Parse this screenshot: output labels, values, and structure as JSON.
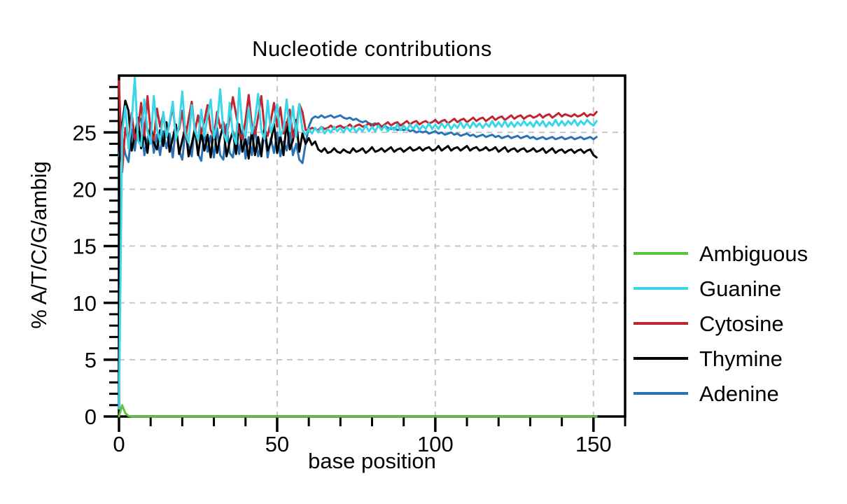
{
  "chart_data": {
    "type": "line",
    "title": "Nucleotide contributions",
    "xlabel": "base position",
    "ylabel": "% A/T/C/G/ambig",
    "xlim": [
      0,
      160
    ],
    "ylim": [
      0,
      30
    ],
    "x_ticks_major": [
      0,
      50,
      100,
      150
    ],
    "x_tick_minor_step": 10,
    "y_ticks_major": [
      0,
      5,
      10,
      15,
      20,
      25
    ],
    "y_tick_minor_step": 1,
    "grid": {
      "x_lines": [
        50,
        100,
        150
      ],
      "y_lines": [
        5,
        10,
        15,
        20,
        25
      ],
      "style": "dashed",
      "color": "#c7c7c7"
    },
    "legend_position": "right-outside",
    "x_start": 0,
    "x_step": 1,
    "series": [
      {
        "name": "Ambiguous",
        "color": "#5cc43c",
        "values": [
          0,
          1,
          0.3,
          0.05,
          0,
          0,
          0,
          0,
          0,
          0,
          0,
          0,
          0,
          0,
          0,
          0,
          0,
          0,
          0,
          0,
          0,
          0,
          0,
          0,
          0,
          0,
          0,
          0,
          0,
          0,
          0,
          0,
          0,
          0,
          0,
          0,
          0,
          0,
          0,
          0,
          0,
          0,
          0,
          0,
          0,
          0,
          0,
          0,
          0,
          0,
          0,
          0,
          0,
          0,
          0,
          0,
          0,
          0,
          0,
          0,
          0,
          0,
          0,
          0,
          0,
          0,
          0,
          0,
          0,
          0,
          0,
          0,
          0,
          0,
          0,
          0,
          0,
          0,
          0,
          0,
          0,
          0,
          0,
          0,
          0,
          0,
          0,
          0,
          0,
          0,
          0,
          0,
          0,
          0,
          0,
          0,
          0,
          0,
          0,
          0,
          0,
          0,
          0,
          0,
          0,
          0,
          0,
          0,
          0,
          0,
          0,
          0,
          0,
          0,
          0,
          0,
          0,
          0,
          0,
          0,
          0,
          0,
          0,
          0,
          0,
          0,
          0,
          0,
          0,
          0,
          0,
          0,
          0,
          0,
          0,
          0,
          0,
          0,
          0,
          0,
          0,
          0,
          0,
          0,
          0,
          0,
          0,
          0,
          0,
          0,
          0,
          0
        ]
      },
      {
        "name": "Guanine",
        "color": "#38d6e8",
        "values": [
          0.7,
          25,
          27.3,
          23.6,
          26,
          29.8,
          24.3,
          23.8,
          27.9,
          25.1,
          24,
          28.2,
          25.3,
          24.2,
          26.8,
          24.6,
          25.9,
          27.7,
          24.4,
          25.6,
          28.6,
          24.9,
          24.1,
          27.4,
          25.2,
          24.3,
          27,
          24.7,
          26.4,
          27.9,
          24.5,
          25.8,
          28.8,
          25,
          24.2,
          27.6,
          24.8,
          24,
          28.9,
          25.4,
          24.6,
          27.2,
          24.9,
          26.1,
          28.4,
          25.2,
          24.4,
          27.8,
          25,
          25.9,
          27.5,
          24.7,
          25.3,
          27.9,
          25.1,
          27.3,
          24.6,
          27.5,
          25.2,
          24.8,
          25.3,
          24.9,
          25.4,
          25,
          25.5,
          24.9,
          25.3,
          25,
          25.5,
          25.1,
          25.4,
          25,
          25.5,
          25.1,
          25.5,
          25,
          25.4,
          25.1,
          25.6,
          25.1,
          25.5,
          25.1,
          25.6,
          25.2,
          25.6,
          25.1,
          25.5,
          25.2,
          25.7,
          25.2,
          25.6,
          25.2,
          25.7,
          25.3,
          25.7,
          25.2,
          25.6,
          25.3,
          25.8,
          25.3,
          25.7,
          25.3,
          25.8,
          25.4,
          25.8,
          25.3,
          25.7,
          25.4,
          25.9,
          25.4,
          25.8,
          25.4,
          25.9,
          25.5,
          25.8,
          25.4,
          25.8,
          25.5,
          26,
          25.5,
          25.9,
          25.5,
          26,
          25.5,
          25.9,
          25.5,
          25.9,
          25.6,
          26,
          25.6,
          25.9,
          25.5,
          26,
          25.6,
          26,
          25.5,
          25.9,
          25.6,
          26.1,
          25.6,
          26,
          25.6,
          26,
          25.7,
          26.1,
          25.6,
          26,
          25.7,
          26.1,
          25.8,
          25.6,
          26
        ]
      },
      {
        "name": "Cytosine",
        "color": "#bf2430",
        "values": [
          29.5,
          21.5,
          25.4,
          24.1,
          26.7,
          24.4,
          25.2,
          27.6,
          24.7,
          28.2,
          25,
          24.3,
          27.1,
          25.5,
          26.6,
          24.6,
          25.8,
          27.3,
          24.8,
          25.3,
          26.9,
          24.5,
          26.2,
          27.7,
          25.1,
          26.5,
          24.9,
          26,
          27.4,
          25.2,
          24.6,
          26.8,
          25.4,
          25.9,
          24.7,
          26.3,
          28.1,
          26.6,
          25,
          24.4,
          26.1,
          28.3,
          25.6,
          24.8,
          26.4,
          28.2,
          25.3,
          24.7,
          26,
          27.6,
          25.5,
          27.2,
          24.9,
          25.7,
          27,
          24.6,
          25.4,
          27.5,
          26.8,
          25.2,
          25.2,
          25.4,
          25.3,
          25.2,
          25.5,
          25.3,
          25.4,
          25.6,
          25.3,
          25.5,
          25.6,
          25.4,
          25.5,
          25.7,
          25.4,
          25.6,
          25.7,
          25.5,
          25.6,
          25.8,
          25.5,
          25.7,
          25.8,
          25.5,
          25.7,
          25.9,
          25.6,
          25.8,
          25.9,
          25.6,
          25.8,
          26,
          25.7,
          25.9,
          26,
          25.7,
          25.9,
          26,
          25.8,
          25.9,
          26.1,
          25.8,
          26,
          26.1,
          25.8,
          26,
          26.2,
          25.9,
          26.1,
          26.2,
          25.9,
          26.1,
          26.3,
          26,
          26.2,
          26.3,
          26,
          26.2,
          26.4,
          26.1,
          26.3,
          26.4,
          26.1,
          26.3,
          26.5,
          26.2,
          26.4,
          26.5,
          26.2,
          26.4,
          26.5,
          26.3,
          26.4,
          26.6,
          26.3,
          26.5,
          26.6,
          26.3,
          26.5,
          26.7,
          26.4,
          26.6,
          26.5,
          26.4,
          26.6,
          26.4,
          26.5,
          26.7,
          26.4,
          26.6,
          26.5,
          26.8
        ]
      },
      {
        "name": "Thymine",
        "color": "#000000",
        "values": [
          21.9,
          25.6,
          27.8,
          26.9,
          23.4,
          24.7,
          26.3,
          23.6,
          24.9,
          23.2,
          25.8,
          24.1,
          23.5,
          25.2,
          23.8,
          25.9,
          23.3,
          24.5,
          25.7,
          23.1,
          24.3,
          25.5,
          22.9,
          24,
          25.3,
          23,
          25,
          23.4,
          24.8,
          22.8,
          25.4,
          23.2,
          24.6,
          25.6,
          22.9,
          24.2,
          25.1,
          23.1,
          25.7,
          23.3,
          24.4,
          22.7,
          25.2,
          23,
          24.6,
          22.9,
          25.5,
          23.4,
          24.1,
          25.8,
          23.2,
          24.7,
          23,
          25.9,
          23.5,
          24.3,
          26.1,
          23.3,
          24.9,
          24,
          24.5,
          23.9,
          24.2,
          23.5,
          23.3,
          23.6,
          23.2,
          23.3,
          23.6,
          23.3,
          23.2,
          23.5,
          23.3,
          23.2,
          23.6,
          23.3,
          23.4,
          23.6,
          23.2,
          23.4,
          23.7,
          23.3,
          23.4,
          23.6,
          23.3,
          23.5,
          23.7,
          23.3,
          23.5,
          23.6,
          23.3,
          23.5,
          23.7,
          23.4,
          23.5,
          23.7,
          23.4,
          23.6,
          23.7,
          23.4,
          23.5,
          23.8,
          23.4,
          23.6,
          23.8,
          23.4,
          23.6,
          23.7,
          23.4,
          23.6,
          23.8,
          23.4,
          23.6,
          23.7,
          23.4,
          23.5,
          23.7,
          23.4,
          23.5,
          23.7,
          23.3,
          23.5,
          23.7,
          23.3,
          23.5,
          23.6,
          23.3,
          23.5,
          23.6,
          23.3,
          23.4,
          23.6,
          23.3,
          23.4,
          23.6,
          23.2,
          23.4,
          23.6,
          23.2,
          23.4,
          23.5,
          23.2,
          23.4,
          23.5,
          23.2,
          23.4,
          23.5,
          23.2,
          23.4,
          23.5,
          23,
          22.8
        ]
      },
      {
        "name": "Adenine",
        "color": "#2b73b4",
        "values": [
          22.9,
          24.5,
          23.1,
          22.4,
          25.3,
          23.4,
          25.9,
          26.2,
          23,
          24.4,
          25.6,
          23.2,
          24.8,
          23,
          25.1,
          23.6,
          24.9,
          22.8,
          25.5,
          23.4,
          22.6,
          25.2,
          23.8,
          22.9,
          25.6,
          23.1,
          22.5,
          25,
          23.3,
          24.7,
          22.8,
          25.4,
          23,
          22.6,
          25.7,
          23.2,
          22.8,
          24.9,
          23.1,
          25.3,
          22.7,
          24.6,
          23,
          25.5,
          22.9,
          23.8,
          25.1,
          22.8,
          24.5,
          23.2,
          25,
          22.9,
          24.2,
          23.4,
          25.2,
          23,
          24,
          22.6,
          22.3,
          24,
          25.5,
          26.2,
          26.4,
          26.3,
          26.5,
          26.3,
          26.4,
          26.5,
          26.3,
          26.4,
          26.5,
          26.3,
          26.2,
          26.3,
          26.1,
          26.2,
          26,
          25.9,
          26,
          25.8,
          25.7,
          25.8,
          25.6,
          25.5,
          25.6,
          25.4,
          25.3,
          25.4,
          25.2,
          25.3,
          25.2,
          25.3,
          25.1,
          25.2,
          25,
          25.1,
          25,
          25.1,
          24.9,
          25,
          25.1,
          24.9,
          25,
          24.8,
          24.9,
          25,
          24.8,
          24.9,
          24.7,
          24.8,
          24.9,
          24.7,
          24.8,
          24.6,
          24.7,
          24.8,
          24.6,
          24.7,
          24.8,
          24.6,
          24.7,
          24.5,
          24.6,
          24.7,
          24.5,
          24.6,
          24.7,
          24.5,
          24.6,
          24.7,
          24.5,
          24.6,
          24.4,
          24.5,
          24.6,
          24.4,
          24.5,
          24.6,
          24.4,
          24.5,
          24.6,
          24.4,
          24.5,
          24.6,
          24.4,
          24.5,
          24.6,
          24.4,
          24.5,
          24.6,
          24.4,
          24.6
        ]
      }
    ]
  }
}
